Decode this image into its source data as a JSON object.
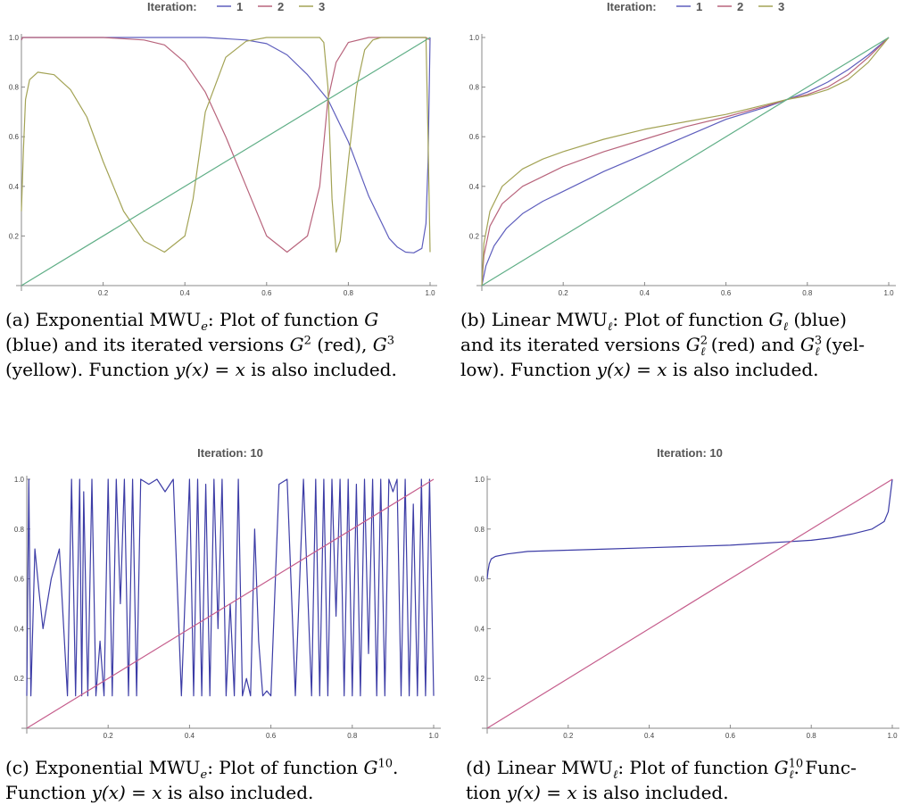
{
  "chart_data": [
    {
      "type": "line",
      "title": "Iteration:",
      "legend": {
        "placement": "top",
        "entries": [
          "1",
          "2",
          "3"
        ]
      },
      "x_ticks": [
        "0.2",
        "0.4",
        "0.6",
        "0.8",
        "1.0"
      ],
      "y_ticks": [
        "0.2",
        "0.4",
        "0.6",
        "0.8",
        "1.0"
      ],
      "xlim": [
        0,
        1
      ],
      "ylim": [
        0,
        1
      ],
      "grid": false,
      "series": [
        {
          "name": "1",
          "color": "#5e5ebd",
          "x": [
            0,
            0.003,
            0.01,
            0.05,
            0.1,
            0.2,
            0.3,
            0.4,
            0.45,
            0.5,
            0.55,
            0.6,
            0.65,
            0.7,
            0.75,
            0.8,
            0.85,
            0.9,
            0.92,
            0.94,
            0.96,
            0.98,
            0.99,
            0.995,
            1
          ],
          "y": [
            0.99,
            1,
            1,
            1,
            1,
            1,
            1,
            1,
            1,
            0.995,
            0.99,
            0.975,
            0.93,
            0.85,
            0.75,
            0.58,
            0.36,
            0.19,
            0.155,
            0.135,
            0.132,
            0.15,
            0.25,
            0.5,
            1
          ]
        },
        {
          "name": "2",
          "color": "#b8647c",
          "x": [
            0,
            0.003,
            0.02,
            0.1,
            0.2,
            0.3,
            0.35,
            0.4,
            0.45,
            0.5,
            0.55,
            0.6,
            0.65,
            0.7,
            0.73,
            0.75,
            0.77,
            0.8,
            0.85,
            0.9,
            0.95,
            0.99,
            1
          ],
          "y": [
            0.99,
            1,
            1,
            1,
            1,
            0.99,
            0.97,
            0.9,
            0.78,
            0.6,
            0.4,
            0.2,
            0.135,
            0.2,
            0.4,
            0.75,
            0.9,
            0.98,
            1,
            1,
            1,
            1,
            0.99
          ]
        },
        {
          "name": "3",
          "color": "#a3a355",
          "x": [
            0,
            0.005,
            0.01,
            0.02,
            0.04,
            0.08,
            0.12,
            0.16,
            0.2,
            0.25,
            0.3,
            0.35,
            0.4,
            0.42,
            0.45,
            0.5,
            0.55,
            0.6,
            0.65,
            0.7,
            0.73,
            0.74,
            0.75,
            0.76,
            0.77,
            0.78,
            0.8,
            0.82,
            0.84,
            0.86,
            0.88,
            0.92,
            0.96,
            0.99,
            0.995,
            1
          ],
          "y": [
            0.3,
            0.55,
            0.75,
            0.83,
            0.86,
            0.85,
            0.79,
            0.68,
            0.5,
            0.3,
            0.18,
            0.135,
            0.2,
            0.35,
            0.7,
            0.92,
            0.985,
            1,
            1,
            1,
            1,
            0.98,
            0.8,
            0.35,
            0.135,
            0.18,
            0.5,
            0.8,
            0.95,
            0.99,
            1,
            1,
            1,
            1,
            0.6,
            0.135
          ]
        },
        {
          "name": "",
          "color": "#5fae86",
          "x": [
            0,
            1
          ],
          "y": [
            0,
            1
          ]
        }
      ]
    },
    {
      "type": "line",
      "title": "Iteration:",
      "legend": {
        "placement": "top",
        "entries": [
          "1",
          "2",
          "3"
        ]
      },
      "x_ticks": [
        "0.2",
        "0.4",
        "0.6",
        "0.8",
        "1.0"
      ],
      "y_ticks": [
        "0.2",
        "0.4",
        "0.6",
        "0.8",
        "1.0"
      ],
      "xlim": [
        0,
        1
      ],
      "ylim": [
        0,
        1
      ],
      "grid": false,
      "series": [
        {
          "name": "1",
          "color": "#5e5ebd",
          "x": [
            0,
            0.01,
            0.03,
            0.06,
            0.1,
            0.15,
            0.2,
            0.3,
            0.4,
            0.5,
            0.6,
            0.7,
            0.75,
            0.8,
            0.85,
            0.9,
            0.95,
            1
          ],
          "y": [
            0,
            0.08,
            0.16,
            0.23,
            0.29,
            0.34,
            0.38,
            0.46,
            0.53,
            0.6,
            0.67,
            0.72,
            0.75,
            0.78,
            0.82,
            0.87,
            0.93,
            1
          ]
        },
        {
          "name": "2",
          "color": "#b8647c",
          "x": [
            0,
            0.005,
            0.02,
            0.05,
            0.1,
            0.15,
            0.2,
            0.3,
            0.4,
            0.5,
            0.6,
            0.7,
            0.75,
            0.8,
            0.85,
            0.9,
            0.95,
            1
          ],
          "y": [
            0,
            0.12,
            0.24,
            0.33,
            0.4,
            0.44,
            0.48,
            0.54,
            0.59,
            0.64,
            0.68,
            0.725,
            0.75,
            0.77,
            0.8,
            0.85,
            0.92,
            1
          ]
        },
        {
          "name": "3",
          "color": "#a3a355",
          "x": [
            0,
            0.005,
            0.02,
            0.05,
            0.1,
            0.15,
            0.2,
            0.3,
            0.4,
            0.5,
            0.6,
            0.7,
            0.75,
            0.8,
            0.85,
            0.9,
            0.95,
            1
          ],
          "y": [
            0,
            0.17,
            0.3,
            0.4,
            0.47,
            0.51,
            0.54,
            0.59,
            0.63,
            0.66,
            0.69,
            0.73,
            0.75,
            0.765,
            0.79,
            0.83,
            0.9,
            1
          ]
        },
        {
          "name": "",
          "color": "#5fae86",
          "x": [
            0,
            1
          ],
          "y": [
            0,
            1
          ]
        }
      ]
    },
    {
      "type": "line",
      "title": "Iteration: 10",
      "x_ticks": [
        "0.2",
        "0.4",
        "0.6",
        "0.8",
        "1.0"
      ],
      "y_ticks": [
        "0.2",
        "0.4",
        "0.6",
        "0.8",
        "1.0"
      ],
      "xlim": [
        0,
        1
      ],
      "ylim": [
        0,
        1
      ],
      "grid": false,
      "series": [
        {
          "name": "",
          "color": "#3c3ca6",
          "x": [
            0,
            0.005,
            0.01,
            0.02,
            0.03,
            0.04,
            0.06,
            0.08,
            0.1,
            0.11,
            0.12,
            0.13,
            0.135,
            0.14,
            0.15,
            0.16,
            0.17,
            0.18,
            0.19,
            0.2,
            0.21,
            0.22,
            0.23,
            0.24,
            0.25,
            0.26,
            0.27,
            0.28,
            0.3,
            0.32,
            0.34,
            0.36,
            0.38,
            0.4,
            0.41,
            0.42,
            0.43,
            0.44,
            0.45,
            0.46,
            0.47,
            0.48,
            0.49,
            0.5,
            0.51,
            0.52,
            0.53,
            0.54,
            0.55,
            0.56,
            0.57,
            0.58,
            0.59,
            0.6,
            0.62,
            0.64,
            0.66,
            0.68,
            0.7,
            0.71,
            0.72,
            0.73,
            0.74,
            0.75,
            0.76,
            0.77,
            0.78,
            0.79,
            0.8,
            0.81,
            0.82,
            0.83,
            0.84,
            0.85,
            0.86,
            0.87,
            0.88,
            0.89,
            0.9,
            0.91,
            0.92,
            0.93,
            0.94,
            0.95,
            0.96,
            0.97,
            0.98,
            0.99,
            1
          ],
          "y": [
            0.13,
            1,
            0.13,
            0.72,
            0.55,
            0.4,
            0.6,
            0.72,
            0.13,
            1,
            0.13,
            1,
            0.13,
            0.95,
            0.13,
            1,
            0.13,
            0.35,
            0.13,
            1,
            0.13,
            1,
            0.5,
            1,
            0.13,
            1,
            0.13,
            1,
            0.98,
            1,
            0.95,
            1,
            0.13,
            1,
            0.13,
            1,
            0.13,
            0.98,
            0.13,
            1,
            0.4,
            1,
            0.13,
            0.5,
            0.13,
            1,
            0.13,
            0.2,
            0.13,
            0.8,
            0.35,
            0.13,
            0.15,
            0.13,
            0.98,
            1,
            0.13,
            1,
            0.13,
            1,
            0.13,
            1,
            0.13,
            1,
            0.45,
            1,
            0.13,
            1,
            0.13,
            0.98,
            0.13,
            1,
            0.3,
            1,
            0.13,
            1,
            0.13,
            1,
            0.95,
            1,
            0.13,
            1,
            0.13,
            0.9,
            0.13,
            1,
            0.13,
            1,
            0.13
          ]
        },
        {
          "name": "",
          "color": "#c55d8c",
          "x": [
            0,
            1
          ],
          "y": [
            0,
            1
          ]
        }
      ]
    },
    {
      "type": "line",
      "title": "Iteration: 10",
      "x_ticks": [
        "0.2",
        "0.4",
        "0.6",
        "0.8",
        "1.0"
      ],
      "y_ticks": [
        "0.2",
        "0.4",
        "0.6",
        "0.8",
        "1.0"
      ],
      "xlim": [
        0,
        1
      ],
      "ylim": [
        0,
        1
      ],
      "grid": false,
      "series": [
        {
          "name": "",
          "color": "#3c3ca6",
          "x": [
            0,
            0.002,
            0.005,
            0.01,
            0.02,
            0.05,
            0.1,
            0.2,
            0.3,
            0.4,
            0.5,
            0.6,
            0.7,
            0.75,
            0.8,
            0.85,
            0.9,
            0.95,
            0.98,
            0.99,
            1
          ],
          "y": [
            0.6,
            0.63,
            0.66,
            0.68,
            0.69,
            0.7,
            0.71,
            0.715,
            0.72,
            0.725,
            0.73,
            0.735,
            0.745,
            0.75,
            0.755,
            0.765,
            0.78,
            0.8,
            0.83,
            0.87,
            1
          ]
        },
        {
          "name": "",
          "color": "#c55d8c",
          "x": [
            0,
            1
          ],
          "y": [
            0,
            1
          ]
        }
      ]
    }
  ],
  "captions": {
    "a": {
      "label": "(a) Exponential MWU",
      "sub": "e",
      "l1b": ": Plot of function ",
      "G": "G",
      "l2a": "(blue) and its iterated versions ",
      "G2": "G",
      "exp2": "2",
      "l2b": " (red), ",
      "G3": "G",
      "exp3": "3",
      "l3a": "(yellow). Function ",
      "yx": "y(x) = x",
      "l3b": " is also included."
    },
    "b": {
      "label": "(b) Linear MWU",
      "sub": "ℓ",
      "l1b": ": Plot of function ",
      "G": "G",
      "gsub": "ℓ",
      "l1c": " (blue)",
      "l2a": "and its iterated versions ",
      "G2": "G",
      "exp2": "2",
      "sub2": "ℓ",
      "l2b": " (red) and ",
      "G3": "G",
      "exp3": "3",
      "sub3": "ℓ",
      "l2c": " (yel-",
      "l3a": "low). Function ",
      "yx": "y(x) = x",
      "l3b": " is also included."
    },
    "c": {
      "label": "(c) Exponential MWU",
      "sub": "e",
      "l1b": ": Plot of function ",
      "G": "G",
      "exp": "10",
      "l1c": ".",
      "l2a": "Function ",
      "yx": "y(x) = x",
      "l2b": " is also included."
    },
    "d": {
      "label": "(d) Linear MWU",
      "sub": "ℓ",
      "l1b": ": Plot of function ",
      "G": "G",
      "exp": "10",
      "gsub": "ℓ",
      "l1c": ". Func-",
      "l2a": "tion ",
      "yx": "y(x) = x",
      "l2b": " is also included."
    }
  }
}
